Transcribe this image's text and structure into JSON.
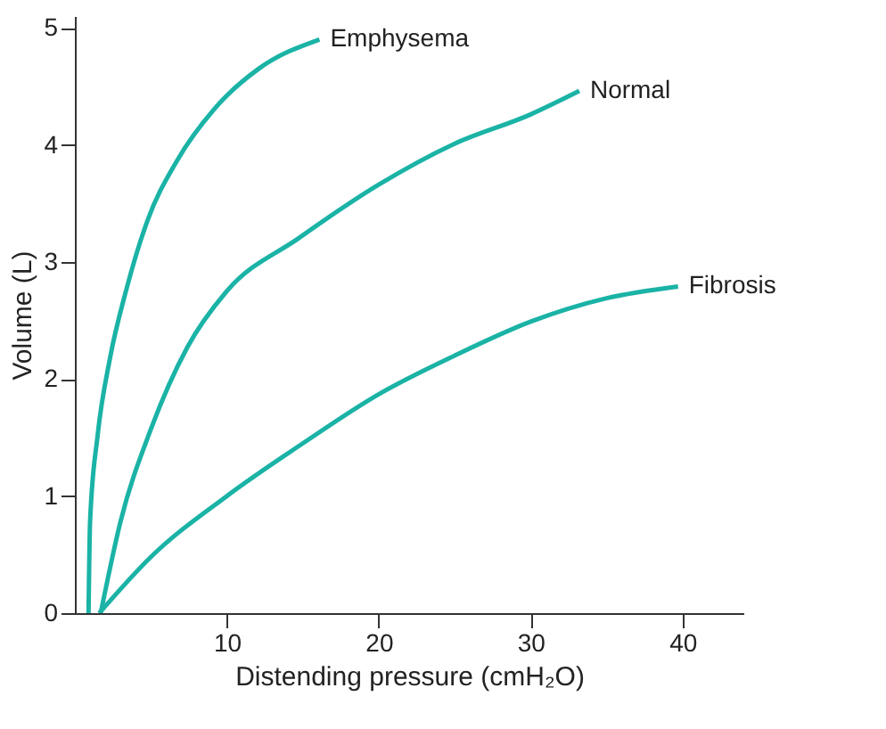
{
  "chart_data": {
    "type": "line",
    "xlabel": "Distending pressure (cmH₂O)",
    "ylabel": "Volume (L)",
    "xlim": [
      0,
      44
    ],
    "xticks": [
      10,
      20,
      30,
      40
    ],
    "ylim": [
      0,
      5.1
    ],
    "yticks": [
      0,
      1,
      2,
      3,
      4,
      5
    ],
    "grid": false,
    "marker": "none",
    "line_style": "solid",
    "series": [
      {
        "name": "Emphysema",
        "color": "#1ab3a6",
        "x": [
          0.9,
          1.0,
          1.5,
          2.3,
          3.4,
          4.8,
          6.7,
          9.2,
          12.1,
          16.1
        ],
        "values": [
          0,
          0.78,
          1.52,
          2.17,
          2.77,
          3.36,
          3.86,
          4.31,
          4.65,
          4.9
        ]
      },
      {
        "name": "Normal",
        "color": "#1ab3a6",
        "x": [
          1.7,
          3.0,
          5.0,
          7.4,
          10.0,
          14.7,
          20.0,
          25.0,
          30.0,
          33.2
        ],
        "values": [
          0,
          0.78,
          1.57,
          2.27,
          2.75,
          3.2,
          3.66,
          4.01,
          4.26,
          4.46
        ]
      },
      {
        "name": "Fibrosis",
        "color": "#1ab3a6",
        "x": [
          1.6,
          5.0,
          10.0,
          15.0,
          20.0,
          25.0,
          30.0,
          35.0,
          39.7
        ],
        "values": [
          0,
          0.48,
          1.0,
          1.45,
          1.87,
          2.2,
          2.49,
          2.69,
          2.79
        ]
      }
    ]
  }
}
